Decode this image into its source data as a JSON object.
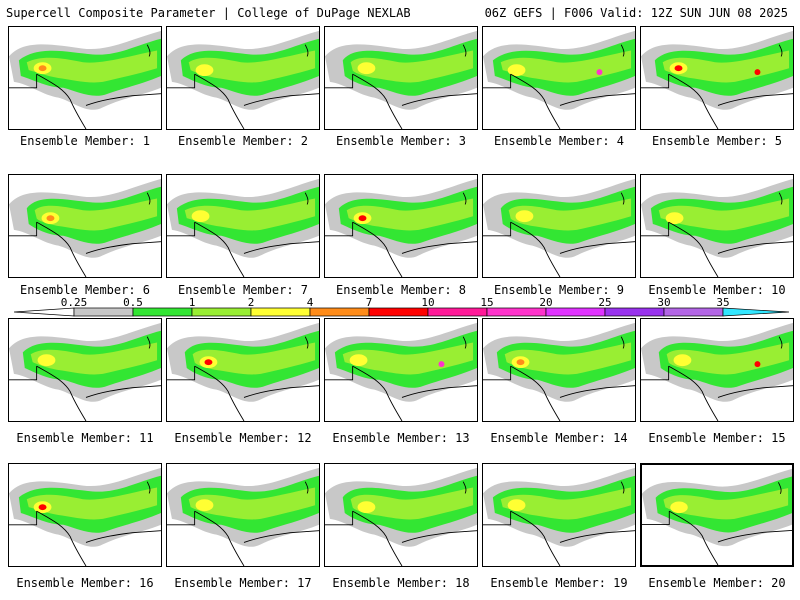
{
  "header": {
    "left_title": "Supercell Composite Parameter | College of DuPage NEXLAB",
    "right_title": "06Z GEFS | F006 Valid: 12Z SUN JUN 08 2025"
  },
  "panels": [
    {
      "label": "Ensemble Member: 1",
      "hot": "orange",
      "extra": null
    },
    {
      "label": "Ensemble Member: 2",
      "hot": "yellow",
      "extra": null
    },
    {
      "label": "Ensemble Member: 3",
      "hot": "yellow",
      "extra": null
    },
    {
      "label": "Ensemble Member: 4",
      "hot": "yellow",
      "extra": "magenta"
    },
    {
      "label": "Ensemble Member: 5",
      "hot": "red",
      "extra": "red"
    },
    {
      "label": "Ensemble Member: 6",
      "hot": "orange",
      "extra": null
    },
    {
      "label": "Ensemble Member: 7",
      "hot": "yellow",
      "extra": null
    },
    {
      "label": "Ensemble Member: 8",
      "hot": "red",
      "extra": null
    },
    {
      "label": "Ensemble Member: 9",
      "hot": "yellow",
      "extra": null
    },
    {
      "label": "Ensemble Member: 10",
      "hot": "yellow",
      "extra": null
    },
    {
      "label": "Ensemble Member: 11",
      "hot": "yellow",
      "extra": null
    },
    {
      "label": "Ensemble Member: 12",
      "hot": "red",
      "extra": null
    },
    {
      "label": "Ensemble Member: 13",
      "hot": "yellow",
      "extra": "magenta"
    },
    {
      "label": "Ensemble Member: 14",
      "hot": "orange",
      "extra": null
    },
    {
      "label": "Ensemble Member: 15",
      "hot": "yellow",
      "extra": "red"
    },
    {
      "label": "Ensemble Member: 16",
      "hot": "red",
      "extra": null
    },
    {
      "label": "Ensemble Member: 17",
      "hot": "yellow",
      "extra": null
    },
    {
      "label": "Ensemble Member: 18",
      "hot": "yellow",
      "extra": null
    },
    {
      "label": "Ensemble Member: 19",
      "hot": "yellow",
      "extra": null
    },
    {
      "label": "Ensemble Member: 20",
      "hot": "yellow",
      "extra": null
    }
  ],
  "selected_panel": 20,
  "colorbar": {
    "labels": [
      "0.25",
      "0.5",
      "1",
      "2",
      "4",
      "7",
      "10",
      "15",
      "20",
      "25",
      "30",
      "35"
    ],
    "colors": [
      "#ffffff",
      "#c8c8c8",
      "#33e633",
      "#99ee33",
      "#ffff33",
      "#ff8c1a",
      "#ff0000",
      "#ff1a99",
      "#ff33cc",
      "#e033ff",
      "#9933ee",
      "#b366e6",
      "#33e6ff"
    ]
  },
  "palette": {
    "gray": "#c8c8c8",
    "green": "#33e633",
    "lime": "#99ee33",
    "yellow": "#ffff33",
    "orange": "#ff8c1a",
    "red": "#ff0000",
    "magenta": "#ff33cc"
  }
}
